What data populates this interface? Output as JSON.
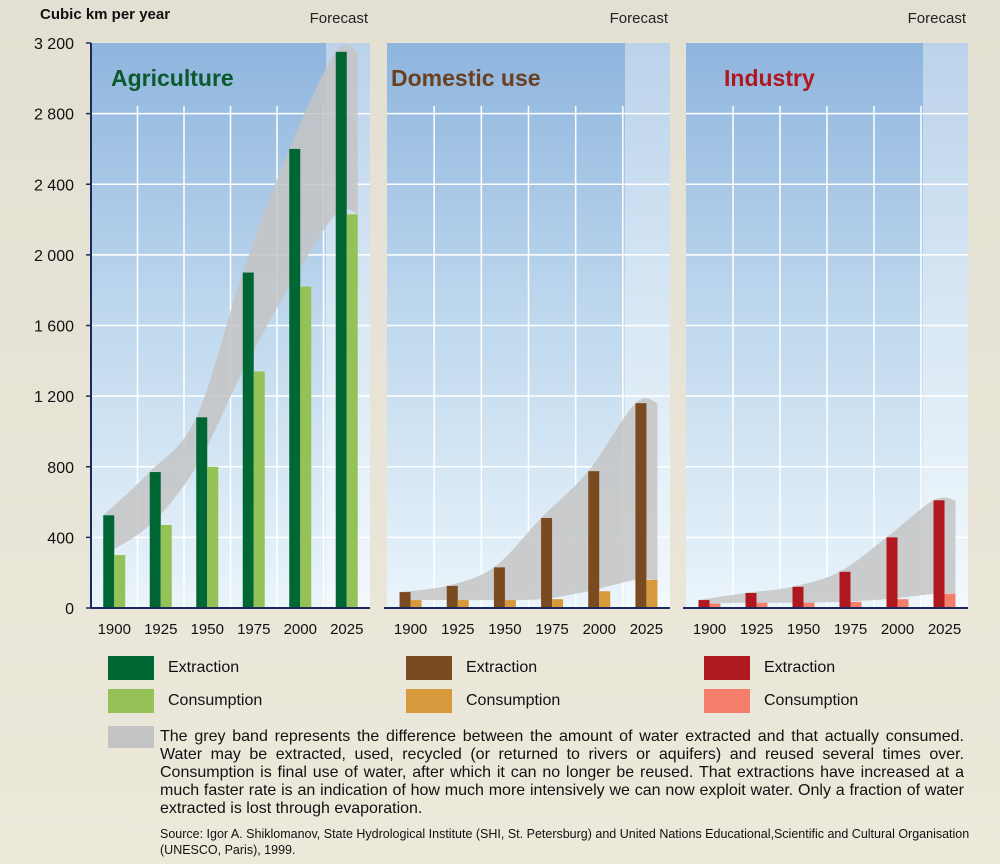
{
  "chart_data": [
    {
      "type": "bar",
      "title": "Agriculture",
      "ylabel": "Cubic km per year",
      "forecast_label": "Forecast",
      "categories": [
        "1900",
        "1925",
        "1950",
        "1975",
        "2000",
        "2025"
      ],
      "ylim": [
        0,
        3200
      ],
      "yticks": [
        "0",
        "400",
        "800",
        "1 200",
        "1 600",
        "2 000",
        "2 400",
        "2 800",
        "3 200"
      ],
      "grid": true,
      "series": [
        {
          "name": "Extraction",
          "values": [
            525,
            770,
            1080,
            1900,
            2600,
            3150
          ]
        },
        {
          "name": "Consumption",
          "values": [
            300,
            470,
            800,
            1340,
            1820,
            2230
          ]
        }
      ],
      "colors": {
        "extraction": "#006633",
        "consumption": "#95c256",
        "title": "#0b5a2e"
      }
    },
    {
      "type": "bar",
      "title": "Domestic use",
      "forecast_label": "Forecast",
      "categories": [
        "1900",
        "1925",
        "1950",
        "1975",
        "2000",
        "2025"
      ],
      "ylim": [
        0,
        3200
      ],
      "grid": true,
      "series": [
        {
          "name": "Extraction",
          "values": [
            90,
            125,
            230,
            510,
            775,
            1160
          ]
        },
        {
          "name": "Consumption",
          "values": [
            45,
            45,
            45,
            50,
            95,
            160
          ]
        }
      ],
      "colors": {
        "extraction": "#7a4a20",
        "consumption": "#d69a3c",
        "title": "#6b4020"
      }
    },
    {
      "type": "bar",
      "title": "Industry",
      "forecast_label": "Forecast",
      "categories": [
        "1900",
        "1925",
        "1950",
        "1975",
        "2000",
        "2025"
      ],
      "ylim": [
        0,
        3200
      ],
      "grid": true,
      "series": [
        {
          "name": "Extraction",
          "values": [
            45,
            85,
            120,
            205,
            400,
            610
          ]
        },
        {
          "name": "Consumption",
          "values": [
            25,
            30,
            30,
            35,
            50,
            80
          ]
        }
      ],
      "colors": {
        "extraction": "#b01820",
        "consumption": "#f47e6c",
        "title": "#b01820"
      }
    }
  ],
  "legend": {
    "extraction": "Extraction",
    "consumption": "Consumption"
  },
  "band_color": "#c4c4c4",
  "note": "The grey band represents the difference between the amount of water extracted and that actually consumed. Water may be extracted, used, recycled (or returned to rivers or aquifers) and reused several times over. Consumption is final use of water, after which it can no longer be reused. That extractions have increased at a much faster rate is an indication of how much more intensively we can now exploit water. Only a fraction of water extracted is lost through evaporation.",
  "source": "Source: Igor A. Shiklomanov, State Hydrological Institute (SHI, St. Petersburg) and United Nations Educational,Scientific and Cultural Organisation (UNESCO, Paris), 1999."
}
